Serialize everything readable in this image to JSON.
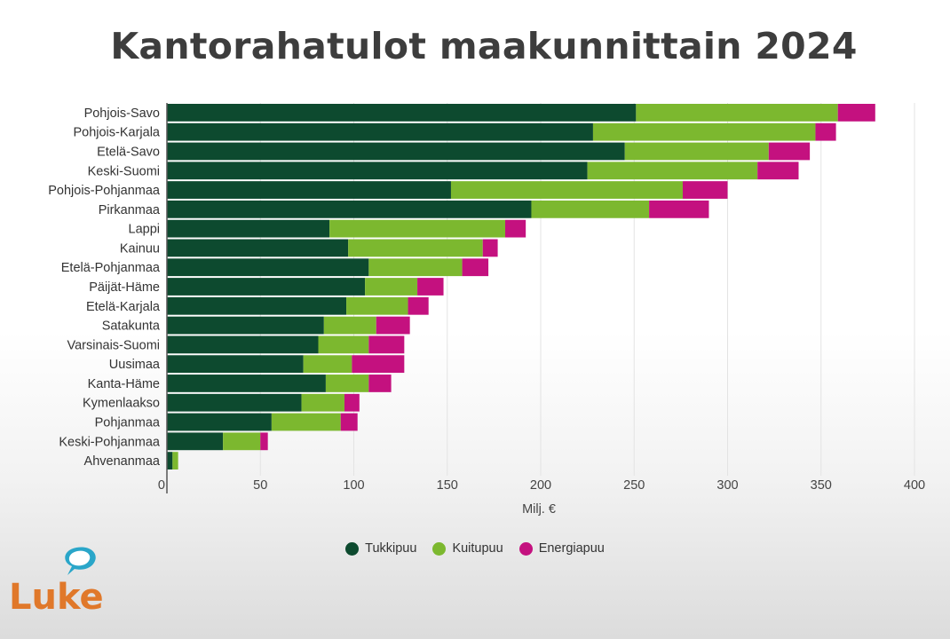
{
  "title": "Kantorahatulot maakunnittain 2024",
  "logo_text": "Luke",
  "colors": {
    "tukkipuu": "#0d4a2f",
    "kuitupuu": "#7cb82f",
    "energiapuu": "#c4117f",
    "logo_orange": "#e0782a",
    "logo_teal": "#2aa6c9"
  },
  "chart_data": {
    "type": "bar",
    "orientation": "horizontal",
    "stacked": true,
    "title": "Kantorahatulot maakunnittain 2024",
    "xlabel": "Milj. €",
    "ylabel": "",
    "xlim": [
      0,
      400
    ],
    "xticks": [
      0,
      50,
      100,
      150,
      200,
      250,
      300,
      350,
      400
    ],
    "grid": true,
    "legend_position": "bottom",
    "categories": [
      "Pohjois-Savo",
      "Pohjois-Karjala",
      "Etelä-Savo",
      "Keski-Suomi",
      "Pohjois-Pohjanmaa",
      "Pirkanmaa",
      "Lappi",
      "Kainuu",
      "Etelä-Pohjanmaa",
      "Päijät-Häme",
      "Etelä-Karjala",
      "Satakunta",
      "Varsinais-Suomi",
      "Uusimaa",
      "Kanta-Häme",
      "Kymenlaakso",
      "Pohjanmaa",
      "Keski-Pohjanmaa",
      "Ahvenanmaa"
    ],
    "series": [
      {
        "name": "Tukkipuu",
        "color": "#0d4a2f",
        "values": [
          251,
          228,
          245,
          225,
          152,
          195,
          87,
          97,
          108,
          106,
          96,
          84,
          81,
          73,
          85,
          72,
          56,
          30,
          3
        ]
      },
      {
        "name": "Kuitupuu",
        "color": "#7cb82f",
        "values": [
          108,
          119,
          77,
          91,
          124,
          63,
          94,
          72,
          50,
          28,
          33,
          28,
          27,
          26,
          23,
          23,
          37,
          20,
          3
        ]
      },
      {
        "name": "Energiapuu",
        "color": "#c4117f",
        "values": [
          20,
          11,
          22,
          22,
          24,
          32,
          11,
          8,
          14,
          14,
          11,
          18,
          19,
          28,
          12,
          8,
          9,
          4,
          0
        ]
      }
    ]
  }
}
